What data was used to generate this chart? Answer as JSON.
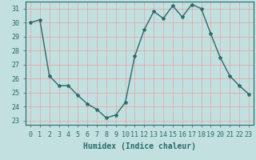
{
  "x": [
    0,
    1,
    2,
    3,
    4,
    5,
    6,
    7,
    8,
    9,
    10,
    11,
    12,
    13,
    14,
    15,
    16,
    17,
    18,
    19,
    20,
    21,
    22,
    23
  ],
  "y": [
    30.0,
    30.2,
    26.2,
    25.5,
    25.5,
    24.8,
    24.2,
    23.8,
    23.2,
    23.4,
    24.3,
    27.6,
    29.5,
    30.8,
    30.3,
    31.2,
    30.4,
    31.3,
    31.0,
    29.2,
    27.5,
    26.2,
    25.5,
    24.9
  ],
  "line_color": "#2a6b6b",
  "marker": "*",
  "marker_size": 3,
  "bg_color": "#c2e0e0",
  "grid_color": "#e8f8f8",
  "xlabel": "Humidex (Indice chaleur)",
  "ylabel": "",
  "xlim": [
    -0.5,
    23.5
  ],
  "ylim": [
    22.7,
    31.5
  ],
  "yticks": [
    23,
    24,
    25,
    26,
    27,
    28,
    29,
    30,
    31
  ],
  "xticks": [
    0,
    1,
    2,
    3,
    4,
    5,
    6,
    7,
    8,
    9,
    10,
    11,
    12,
    13,
    14,
    15,
    16,
    17,
    18,
    19,
    20,
    21,
    22,
    23
  ],
  "xlabel_fontsize": 7,
  "tick_fontsize": 6,
  "line_width": 1.0
}
